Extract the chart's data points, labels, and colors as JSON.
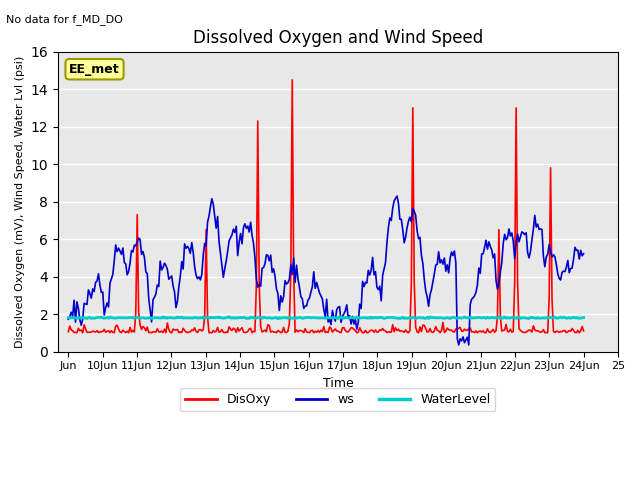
{
  "title": "Dissolved Oxygen and Wind Speed",
  "no_data_text": "No data for f_MD_DO",
  "annotation_text": "EE_met",
  "xlabel": "Time",
  "ylabel": "Dissolved Oxygen (mV), Wind Speed, Water Lvl (psi)",
  "ylim": [
    0,
    16
  ],
  "yticks": [
    0,
    2,
    4,
    6,
    8,
    10,
    12,
    14,
    16
  ],
  "xtick_positions": [
    0,
    1,
    2,
    3,
    4,
    5,
    6,
    7,
    8,
    9,
    10,
    11,
    12,
    13,
    14,
    15,
    16
  ],
  "xtick_labels": [
    "Jun",
    "10Jun",
    "11Jun",
    "12Jun",
    "13Jun",
    "14Jun",
    "15Jun",
    "16Jun",
    "17Jun",
    "18Jun",
    "19Jun",
    "20Jun",
    "21Jun",
    "22Jun",
    "23Jun",
    "24Jun",
    "25"
  ],
  "water_level": 1.8,
  "line_colors": {
    "DisOxy": "#FF0000",
    "ws": "#0000CC",
    "WaterLevel": "#00CCCC"
  },
  "line_widths": {
    "DisOxy": 1.2,
    "ws": 1.2,
    "WaterLevel": 2.0
  },
  "bg_color": "#E8E8E8",
  "annotation_box_color": "#FFFF99",
  "annotation_border_color": "#999900"
}
